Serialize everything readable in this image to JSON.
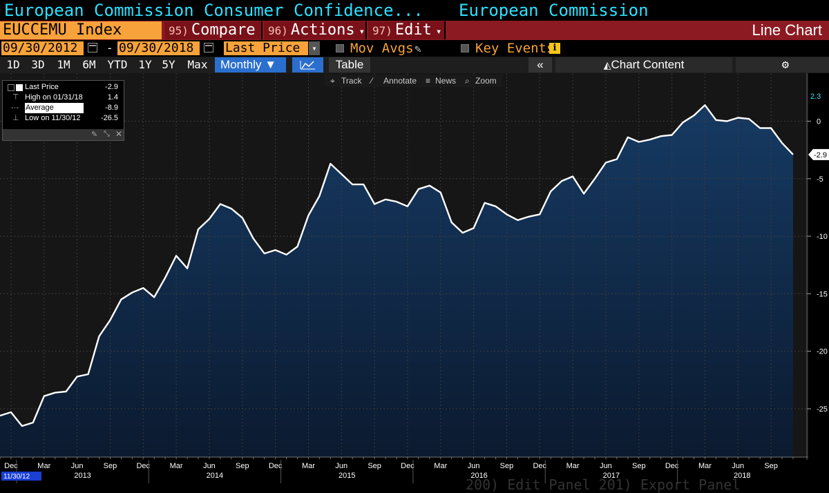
{
  "title": {
    "main": "European Commission Consumer Confidence...",
    "source": "European Commission"
  },
  "toolbar": {
    "ticker": "EUCCEMU Index",
    "compare": {
      "num": "95)",
      "label": "Compare"
    },
    "actions": {
      "num": "96)",
      "label": "Actions"
    },
    "edit": {
      "num": "97)",
      "label": "Edit"
    },
    "chart_type": "Line Chart"
  },
  "dates": {
    "start": "09/30/2012",
    "end": "09/30/2018",
    "separator": "-",
    "field": "Last Price",
    "mov_avgs": "Mov Avgs",
    "key_events": "Key Events",
    "info_icon": "i"
  },
  "periods": {
    "items": [
      "1D",
      "3D",
      "1M",
      "6M",
      "YTD",
      "1Y",
      "5Y",
      "Max"
    ],
    "frequency": "Monthly ▼",
    "table": "Table",
    "collapse": "«",
    "chart_content": "Chart Content",
    "settings_icon": "⚙"
  },
  "tools": {
    "track": "Track",
    "annotate": "Annotate",
    "news": "News",
    "zoom": "Zoom"
  },
  "legend": {
    "last_price_label": "Last Price",
    "last_price_value": "-2.9",
    "high_label": "High on 01/31/18",
    "high_value": "1.4",
    "average_label": "Average",
    "average_value": "-8.9",
    "low_label": "Low on 11/30/12",
    "low_value": "-26.5"
  },
  "bottom_strip": "200) Edit Panel  201) Export Panel",
  "colors": {
    "accent_cyan": "#2ee0ff",
    "orange": "#f7a23a",
    "toolbar_red": "#8c1a22",
    "area_fill": "#123256",
    "line": "#ffffff",
    "grid": "#3a3a3a",
    "last_price_badge": "#ffffff"
  },
  "chart_data": {
    "type": "area",
    "start_date_label": "11/30/12",
    "last_value_label": "-2.9",
    "top_label": "2.3",
    "ylim": [
      -29,
      2.3
    ],
    "yticks": [
      0,
      -5,
      -10,
      -15,
      -20,
      -25
    ],
    "x_month_labels": [
      "Dec",
      "Mar",
      "Jun",
      "Sep",
      "Dec",
      "Mar",
      "Jun",
      "Sep",
      "Dec",
      "Mar",
      "Jun",
      "Sep",
      "Dec",
      "Mar",
      "Jun",
      "Sep",
      "Dec",
      "Mar",
      "Jun",
      "Sep",
      "Dec",
      "Mar",
      "Jun",
      "Sep"
    ],
    "x_year_labels": [
      "2013",
      "2014",
      "2015",
      "2016",
      "2017",
      "2018"
    ],
    "series": [
      {
        "values": [
          -25.6,
          -25.3,
          -26.5,
          -26.2,
          -23.9,
          -23.6,
          -23.5,
          -22.2,
          -22.0,
          -18.7,
          -17.3,
          -15.5,
          -14.9,
          -14.5,
          -15.3,
          -13.6,
          -11.7,
          -12.8,
          -9.4,
          -8.5,
          -7.2,
          -7.6,
          -8.4,
          -10.2,
          -11.5,
          -11.2,
          -11.6,
          -10.9,
          -8.2,
          -6.5,
          -3.7,
          -4.6,
          -5.5,
          -5.5,
          -7.2,
          -6.8,
          -7.0,
          -7.4,
          -5.9,
          -5.6,
          -6.2,
          -8.8,
          -9.7,
          -9.3,
          -7.1,
          -7.4,
          -8.1,
          -8.6,
          -8.3,
          -8.1,
          -6.1,
          -5.2,
          -4.8,
          -6.3,
          -5.0,
          -3.6,
          -3.3,
          -1.4,
          -1.8,
          -1.6,
          -1.3,
          -1.2,
          -0.1,
          0.5,
          1.4,
          0.1,
          0.0,
          0.3,
          0.2,
          -0.6,
          -0.6,
          -1.9,
          -2.9
        ]
      }
    ]
  }
}
